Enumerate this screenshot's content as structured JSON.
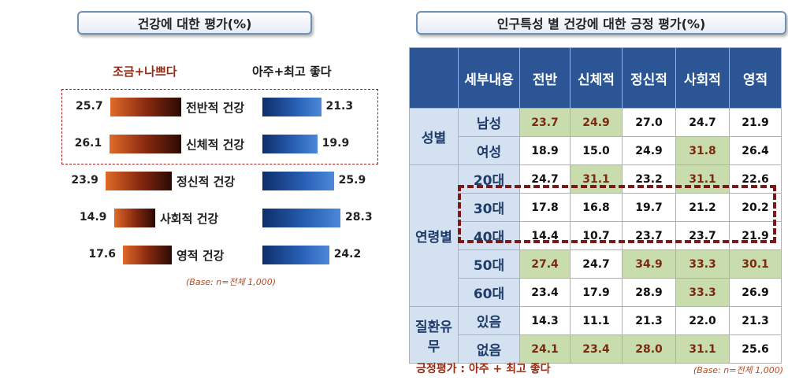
{
  "left_chart": {
    "title": "건강에 대한 평가(%)",
    "legend_negative": "조금+나쁘다",
    "legend_positive": "아주+최고 좋다",
    "base_note": "(Base: n=전체 1,000)"
  },
  "right_table": {
    "title": "인구특성 별 건강에 대한 긍정 평가(%)",
    "header_sub": "세부내용",
    "columns": [
      "전반",
      "신체적",
      "정신적",
      "사회적",
      "영적"
    ],
    "groups": [
      {
        "label": "성별",
        "rows": [
          {
            "sub": "남성",
            "values": [
              "23.7",
              "24.9",
              "27.0",
              "24.7",
              "21.9"
            ],
            "hl": [
              true,
              true,
              false,
              false,
              false
            ]
          },
          {
            "sub": "여성",
            "values": [
              "18.9",
              "15.0",
              "24.9",
              "31.8",
              "26.4"
            ],
            "hl": [
              false,
              false,
              false,
              true,
              false
            ]
          }
        ]
      },
      {
        "label": "연령별",
        "rows": [
          {
            "sub": "20대",
            "values": [
              "24.7",
              "31.1",
              "23.2",
              "31.1",
              "22.6"
            ],
            "hl": [
              false,
              true,
              false,
              true,
              false
            ]
          },
          {
            "sub": "30대",
            "values": [
              "17.8",
              "16.8",
              "19.7",
              "21.2",
              "20.2"
            ],
            "hl": [
              false,
              false,
              false,
              false,
              false
            ]
          },
          {
            "sub": "40대",
            "values": [
              "14.4",
              "10.7",
              "23.7",
              "23.7",
              "21.9"
            ],
            "hl": [
              false,
              false,
              false,
              false,
              false
            ]
          },
          {
            "sub": "50대",
            "values": [
              "27.4",
              "24.7",
              "34.9",
              "33.3",
              "30.1"
            ],
            "hl": [
              true,
              false,
              true,
              true,
              true
            ]
          },
          {
            "sub": "60대",
            "values": [
              "23.4",
              "17.9",
              "28.9",
              "33.3",
              "26.9"
            ],
            "hl": [
              false,
              false,
              false,
              true,
              false
            ]
          }
        ]
      },
      {
        "label": "질환유무",
        "rows": [
          {
            "sub": "있음",
            "values": [
              "14.3",
              "11.1",
              "21.3",
              "22.0",
              "21.3"
            ],
            "hl": [
              false,
              false,
              false,
              false,
              false
            ]
          },
          {
            "sub": "없음",
            "values": [
              "24.1",
              "23.4",
              "28.0",
              "31.1",
              "25.6"
            ],
            "hl": [
              true,
              true,
              true,
              true,
              false
            ]
          }
        ]
      }
    ],
    "footer_note": "긍정평가 : 아주 + 최고 좋다",
    "base_note": "(Base: n=전체 1,000)"
  },
  "chart_data": {
    "type": "bar",
    "orientation": "horizontal-diverging",
    "title": "건강에 대한 평가(%)",
    "categories": [
      "전반적 건강",
      "신체적 건강",
      "정신적 건강",
      "사회적 건강",
      "영적 건강"
    ],
    "series": [
      {
        "name": "조금+나쁘다",
        "values": [
          25.7,
          26.1,
          23.9,
          14.9,
          17.6
        ],
        "color": "#b8431c"
      },
      {
        "name": "아주+최고 좋다",
        "values": [
          21.3,
          19.9,
          25.9,
          28.3,
          24.2
        ],
        "color": "#1f4f99"
      }
    ],
    "xlim": [
      0,
      30
    ],
    "grid": false,
    "legend": "top"
  }
}
